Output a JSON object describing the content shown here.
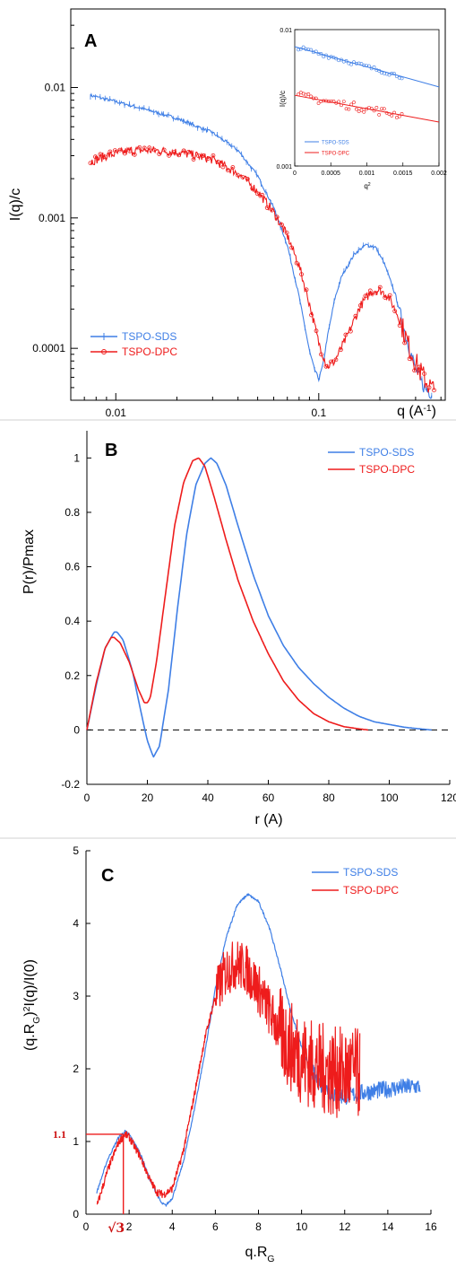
{
  "colors": {
    "sds": "#3f7fe6",
    "dpc": "#ee1c1c",
    "axis": "#000000",
    "annot": "#cc1111"
  },
  "chart_data": [
    {
      "panel": "A",
      "type": "line",
      "xlabel_main": "q (A",
      "xlabel_exp": "-1",
      "xlabel_close": ")",
      "ylabel": "I(q)/c",
      "xscale": "log",
      "yscale": "log",
      "xlim": [
        0.006,
        0.42
      ],
      "ylim": [
        4e-05,
        0.04
      ],
      "xticks": [
        {
          "v": 0.01,
          "label": "0.01"
        },
        {
          "v": 0.1,
          "label": "0.1"
        }
      ],
      "yticks": [
        {
          "v": 0.01,
          "label": "0.01"
        },
        {
          "v": 0.001,
          "label": "0.001"
        },
        {
          "v": 0.0001,
          "label": "0.0001"
        }
      ],
      "legend": {
        "position": "bottom-left",
        "entries": [
          "TSPO-SDS",
          "TSPO-DPC"
        ]
      },
      "series": [
        {
          "name": "TSPO-SDS",
          "color_key": "sds",
          "x": [
            0.0075,
            0.01,
            0.015,
            0.02,
            0.03,
            0.04,
            0.05,
            0.06,
            0.07,
            0.08,
            0.09,
            0.095,
            0.1,
            0.105,
            0.11,
            0.12,
            0.13,
            0.15,
            0.17,
            0.19,
            0.21,
            0.24,
            0.27,
            0.3,
            0.33,
            0.36
          ],
          "y": [
            0.0087,
            0.0078,
            0.0066,
            0.0058,
            0.0045,
            0.0033,
            0.0021,
            0.0012,
            0.00062,
            0.00025,
            9.5e-05,
            7e-05,
            5.8e-05,
            7.5e-05,
            0.00012,
            0.00024,
            0.00036,
            0.00053,
            0.00062,
            0.0006,
            0.00045,
            0.00025,
            0.00012,
            7e-05,
            5e-05,
            4.5e-05
          ]
        },
        {
          "name": "TSPO-DPC",
          "color_key": "dpc",
          "x": [
            0.0075,
            0.009,
            0.012,
            0.015,
            0.02,
            0.025,
            0.03,
            0.04,
            0.05,
            0.06,
            0.07,
            0.08,
            0.09,
            0.1,
            0.11,
            0.12,
            0.14,
            0.16,
            0.18,
            0.2,
            0.22,
            0.25,
            0.28,
            0.31,
            0.34,
            0.37
          ],
          "y": [
            0.0027,
            0.003,
            0.0033,
            0.0033,
            0.0032,
            0.003,
            0.0028,
            0.0022,
            0.0016,
            0.0011,
            0.00073,
            0.00043,
            0.00022,
            0.00011,
            7.2e-05,
            8e-05,
            0.00013,
            0.00021,
            0.00027,
            0.00028,
            0.00025,
            0.00017,
            0.0001,
            7e-05,
            5.5e-05,
            4.7e-05
          ]
        }
      ],
      "inset": {
        "xlabel": "q",
        "xlabel_exp": "2",
        "ylabel": "I(q)/c",
        "yscale": "log",
        "xlim": [
          0,
          0.002
        ],
        "ylim": [
          0.001,
          0.01
        ],
        "xticks": [
          {
            "v": 0,
            "label": "0"
          },
          {
            "v": 0.0005,
            "label": "0.0005"
          },
          {
            "v": 0.001,
            "label": "0.001"
          },
          {
            "v": 0.0015,
            "label": "0.0015"
          },
          {
            "v": 0.002,
            "label": "0.002"
          }
        ],
        "yticks": [
          {
            "v": 0.01,
            "label": "0.01"
          },
          {
            "v": 0.001,
            "label": "0.001"
          }
        ],
        "legend": [
          "TSPO-SDS",
          "TSPO-DPC"
        ],
        "series": [
          {
            "name": "TSPO-SDS",
            "color_key": "sds",
            "fit": {
              "x": [
                0,
                0.002
              ],
              "y": [
                0.0075,
                0.0038
              ]
            },
            "points_range": [
              5e-05,
              0.0015
            ]
          },
          {
            "name": "TSPO-DPC",
            "color_key": "dpc",
            "fit": {
              "x": [
                0,
                0.002
              ],
              "y": [
                0.0033,
                0.0021
              ]
            },
            "points_range": [
              5e-05,
              0.0015
            ]
          }
        ]
      }
    },
    {
      "panel": "B",
      "type": "line",
      "xlabel": "r (A)",
      "ylabel": "P(r)/Pmax",
      "xlim": [
        0,
        120
      ],
      "ylim": [
        -0.2,
        1.1
      ],
      "xticks": [
        0,
        20,
        40,
        60,
        80,
        100,
        120
      ],
      "yticks": [
        -0.2,
        0,
        0.2,
        0.4,
        0.6,
        0.8,
        1
      ],
      "zero_line": "dashed",
      "legend": {
        "position": "top-right",
        "entries": [
          "TSPO-SDS",
          "TSPO-DPC"
        ]
      },
      "series": [
        {
          "name": "TSPO-SDS",
          "color_key": "sds",
          "x": [
            0,
            3,
            6,
            9,
            10,
            12,
            15,
            18,
            20,
            22,
            24,
            27,
            30,
            33,
            36,
            39,
            41,
            43,
            46,
            50,
            55,
            60,
            65,
            70,
            75,
            80,
            85,
            90,
            95,
            100,
            105,
            110,
            114
          ],
          "y": [
            0,
            0.16,
            0.3,
            0.36,
            0.36,
            0.33,
            0.22,
            0.06,
            -0.04,
            -0.1,
            -0.06,
            0.15,
            0.45,
            0.72,
            0.9,
            0.98,
            1.0,
            0.98,
            0.9,
            0.75,
            0.57,
            0.42,
            0.31,
            0.23,
            0.17,
            0.12,
            0.08,
            0.05,
            0.03,
            0.02,
            0.01,
            0.004,
            0
          ]
        },
        {
          "name": "TSPO-DPC",
          "color_key": "dpc",
          "x": [
            0,
            3,
            6,
            8,
            9,
            11,
            14,
            17,
            19,
            20,
            21,
            23,
            26,
            29,
            32,
            35,
            37,
            39,
            42,
            46,
            50,
            55,
            60,
            65,
            70,
            75,
            80,
            85,
            90,
            93
          ],
          "y": [
            0,
            0.17,
            0.3,
            0.34,
            0.34,
            0.32,
            0.25,
            0.15,
            0.1,
            0.1,
            0.12,
            0.25,
            0.5,
            0.75,
            0.91,
            0.99,
            1.0,
            0.97,
            0.86,
            0.7,
            0.55,
            0.4,
            0.28,
            0.18,
            0.11,
            0.06,
            0.03,
            0.012,
            0.004,
            0
          ]
        }
      ]
    },
    {
      "panel": "C",
      "type": "line",
      "xlabel": "q.R",
      "xlabel_sub": "G",
      "ylabel_a": "(q.R",
      "ylabel_sub": "G",
      "ylabel_b": ")",
      "ylabel_exp": "2",
      "ylabel_c": "I(q)/I(0)",
      "xlim": [
        0,
        16
      ],
      "ylim": [
        0,
        5
      ],
      "xticks": [
        0,
        2,
        4,
        6,
        8,
        10,
        12,
        14,
        16
      ],
      "yticks": [
        0,
        1,
        2,
        3,
        4,
        5
      ],
      "annotations": {
        "y_mark": "1.1",
        "y_mark_value": 1.1,
        "x_mark": "√3",
        "x_mark_value": 1.732
      },
      "legend": {
        "position": "top-right",
        "entries": [
          "TSPO-SDS",
          "TSPO-DPC"
        ]
      },
      "series": [
        {
          "name": "TSPO-SDS",
          "color_key": "sds",
          "noise_from": 10.5,
          "noise_amp": 0.12,
          "x": [
            0.5,
            1,
            1.5,
            1.8,
            2,
            2.5,
            3,
            3.5,
            3.7,
            4,
            4.5,
            5,
            5.5,
            6,
            6.5,
            7,
            7.5,
            8,
            8.5,
            9,
            9.5,
            10,
            10.5,
            11,
            11.5,
            12,
            12.5,
            13,
            13.5,
            14,
            14.5,
            15,
            15.5
          ],
          "y": [
            0.3,
            0.75,
            1.05,
            1.14,
            1.1,
            0.85,
            0.45,
            0.15,
            0.12,
            0.22,
            0.7,
            1.4,
            2.2,
            3.1,
            3.8,
            4.25,
            4.4,
            4.3,
            3.95,
            3.4,
            2.8,
            2.3,
            1.95,
            1.75,
            1.65,
            1.62,
            1.65,
            1.68,
            1.7,
            1.72,
            1.74,
            1.75,
            1.76
          ]
        },
        {
          "name": "TSPO-DPC",
          "color_key": "dpc",
          "noise_from": 6.0,
          "noise_amp": 0.35,
          "x": [
            0.5,
            1,
            1.5,
            1.8,
            2,
            2.5,
            3,
            3.3,
            3.6,
            4,
            4.5,
            5,
            5.5,
            6,
            6.5,
            7,
            7.5,
            8,
            8.5,
            9,
            9.5,
            10,
            10.5,
            11,
            11.5,
            12,
            12.5,
            12.7
          ],
          "y": [
            0.1,
            0.6,
            0.98,
            1.1,
            1.06,
            0.8,
            0.45,
            0.3,
            0.27,
            0.35,
            0.85,
            1.6,
            2.4,
            3.0,
            3.35,
            3.45,
            3.35,
            3.1,
            2.8,
            2.5,
            2.3,
            2.15,
            2.05,
            2.0,
            1.95,
            1.95,
            1.95,
            1.9
          ]
        }
      ]
    }
  ]
}
